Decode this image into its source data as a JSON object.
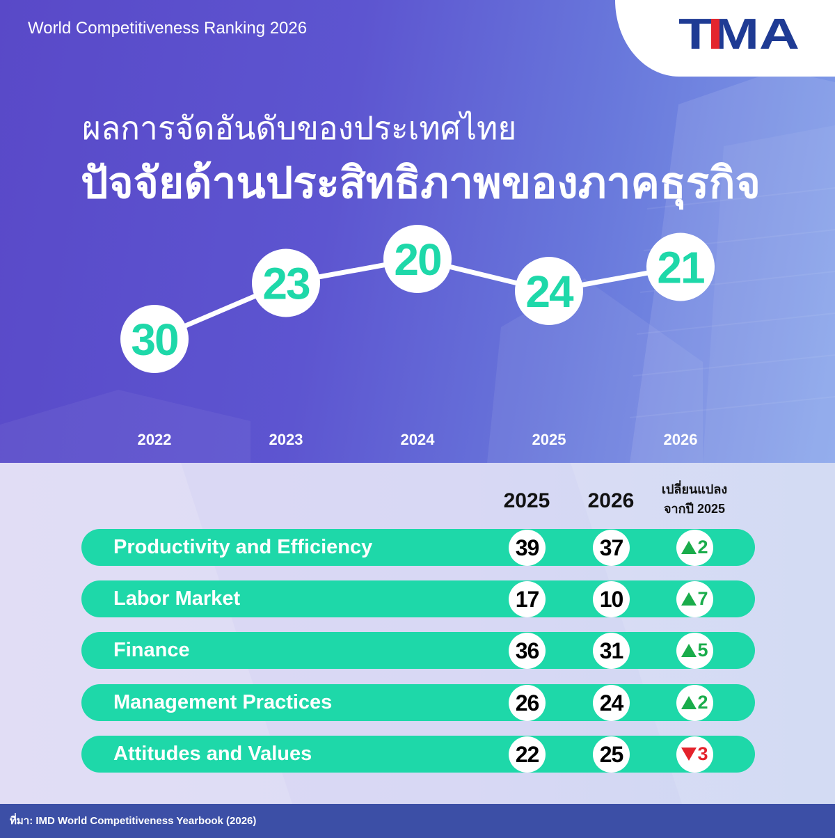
{
  "header": {
    "series_title": "World Competitiveness Ranking 2026",
    "logo_text": "TMA",
    "title_line1": "ผลการจัดอันดับของประเทศไทย",
    "title_line2": "ปัจจัยด้านประสิทธิภาพของภาคธุรกิจ"
  },
  "chart_data": {
    "type": "line",
    "categories": [
      "2022",
      "2023",
      "2024",
      "2025",
      "2026"
    ],
    "values": [
      30,
      23,
      20,
      24,
      21
    ],
    "y_reversed": true,
    "grid": false
  },
  "table": {
    "header_2025": "2025",
    "header_2026": "2026",
    "header_change_line1": "เปลี่ยนแปลง",
    "header_change_line2": "จากปี 2025",
    "rows": [
      {
        "label": "Productivity and Efficiency",
        "rank_2025": 39,
        "rank_2026": 37,
        "change": {
          "icon": "up-triangle-icon",
          "value": 2
        }
      },
      {
        "label": "Labor Market",
        "rank_2025": 17,
        "rank_2026": 10,
        "change": {
          "icon": "up-triangle-icon",
          "value": 7
        }
      },
      {
        "label": "Finance",
        "rank_2025": 36,
        "rank_2026": 31,
        "change": {
          "icon": "up-triangle-icon",
          "value": 5
        }
      },
      {
        "label": "Management Practices",
        "rank_2025": 26,
        "rank_2026": 24,
        "change": {
          "icon": "up-triangle-icon",
          "value": 2
        }
      },
      {
        "label": "Attitudes and Values",
        "rank_2025": 22,
        "rank_2026": 25,
        "change": {
          "icon": "down-triangle-icon",
          "value": 3
        }
      }
    ]
  },
  "footer": {
    "source": "ที่มา: IMD World Competitiveness Yearbook (2026)"
  },
  "colors": {
    "accent_teal": "#1ed8a9",
    "increase_green": "#1aac4b",
    "decrease_red": "#e4222b",
    "logo_navy": "#1f3b94",
    "logo_red": "#e3262e",
    "footer_blue": "#3c4fa6"
  }
}
